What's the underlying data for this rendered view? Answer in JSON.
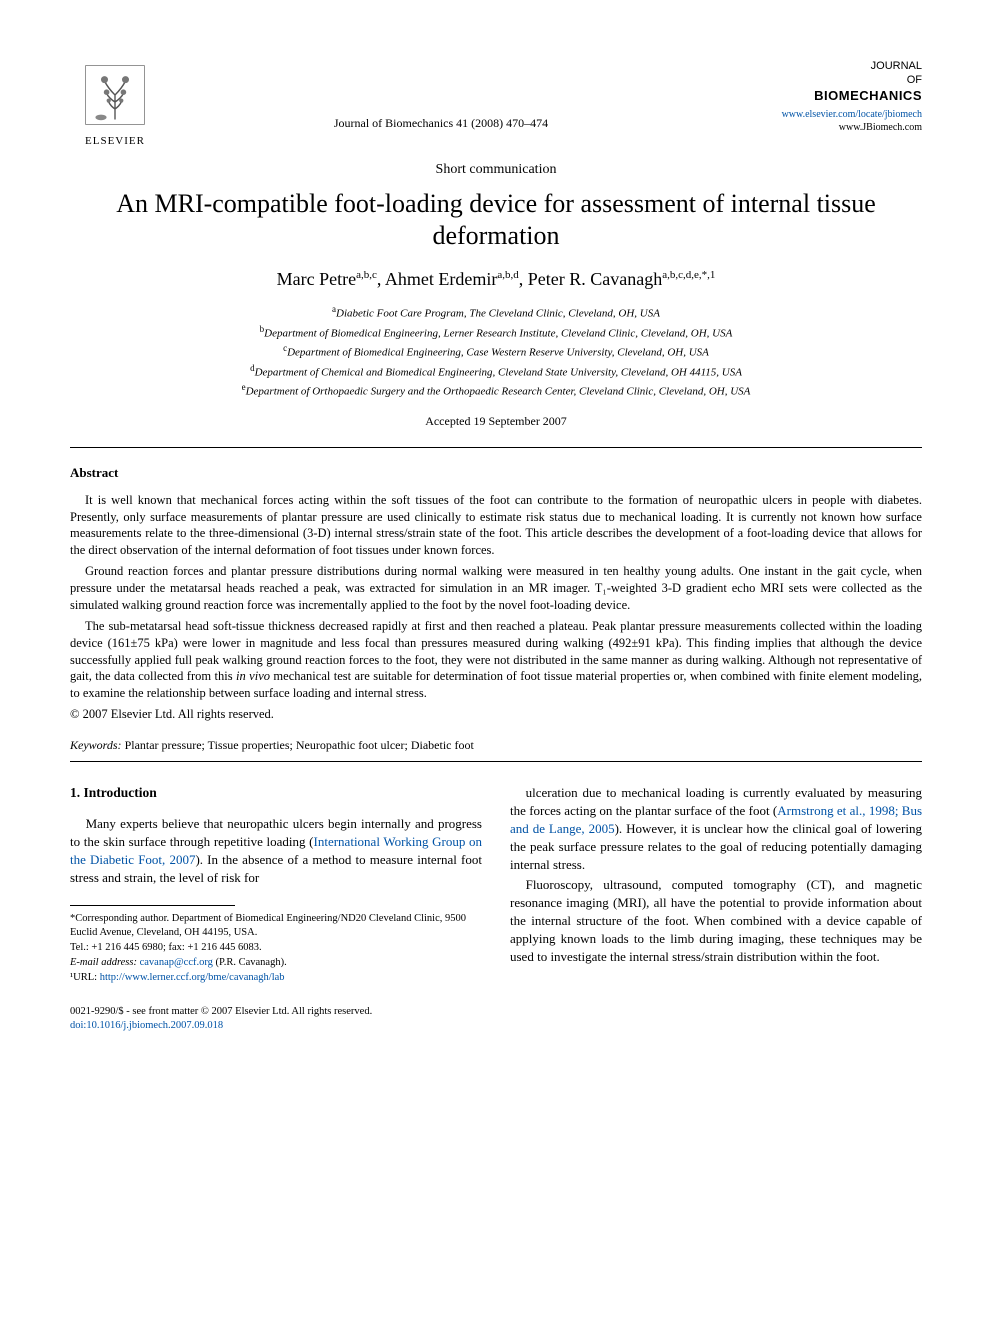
{
  "header": {
    "publisher_logo_label": "ELSEVIER",
    "citation": "Journal of Biomechanics 41 (2008) 470–474",
    "journal_stack": {
      "line1": "JOURNAL",
      "line2": "OF",
      "line3": "BIOMECHANICS"
    },
    "journal_link1": "www.elsevier.com/locate/jbiomech",
    "journal_link2": "www.JBiomech.com"
  },
  "article": {
    "type": "Short communication",
    "title": "An MRI-compatible foot-loading device for assessment of internal tissue deformation",
    "authors_html": "Marc Petre<sup>a,b,c</sup>, Ahmet Erdemir<sup>a,b,d</sup>, Peter R. Cavanagh<sup>a,b,c,d,e,*,1</sup>",
    "affiliations": [
      {
        "sup": "a",
        "text": "Diabetic Foot Care Program, The Cleveland Clinic, Cleveland, OH, USA"
      },
      {
        "sup": "b",
        "text": "Department of Biomedical Engineering, Lerner Research Institute, Cleveland Clinic, Cleveland, OH, USA"
      },
      {
        "sup": "c",
        "text": "Department of Biomedical Engineering, Case Western Reserve University, Cleveland, OH, USA"
      },
      {
        "sup": "d",
        "text": "Department of Chemical and Biomedical Engineering, Cleveland State University, Cleveland, OH 44115, USA"
      },
      {
        "sup": "e",
        "text": "Department of Orthopaedic Surgery and the Orthopaedic Research Center, Cleveland Clinic, Cleveland, OH, USA"
      }
    ],
    "accepted": "Accepted 19 September 2007"
  },
  "abstract": {
    "heading": "Abstract",
    "p1": "It is well known that mechanical forces acting within the soft tissues of the foot can contribute to the formation of neuropathic ulcers in people with diabetes. Presently, only surface measurements of plantar pressure are used clinically to estimate risk status due to mechanical loading. It is currently not known how surface measurements relate to the three-dimensional (3-D) internal stress/strain state of the foot. This article describes the development of a foot-loading device that allows for the direct observation of the internal deformation of foot tissues under known forces.",
    "p2": "Ground reaction forces and plantar pressure distributions during normal walking were measured in ten healthy young adults. One instant in the gait cycle, when pressure under the metatarsal heads reached a peak, was extracted for simulation in an MR imager. T₁-weighted 3-D gradient echo MRI sets were collected as the simulated walking ground reaction force was incrementally applied to the foot by the novel foot-loading device.",
    "p3": "The sub-metatarsal head soft-tissue thickness decreased rapidly at first and then reached a plateau. Peak plantar pressure measurements collected within the loading device (161±75 kPa) were lower in magnitude and less focal than pressures measured during walking (492±91 kPa). This finding implies that although the device successfully applied full peak walking ground reaction forces to the foot, they were not distributed in the same manner as during walking. Although not representative of gait, the data collected from this in vivo mechanical test are suitable for determination of foot tissue material properties or, when combined with finite element modeling, to examine the relationship between surface loading and internal stress.",
    "copyright": "© 2007 Elsevier Ltd. All rights reserved.",
    "keywords_label": "Keywords:",
    "keywords": "Plantar pressure; Tissue properties; Neuropathic foot ulcer; Diabetic foot"
  },
  "body": {
    "section_heading": "1. Introduction",
    "left_p1_a": "Many experts believe that neuropathic ulcers begin internally and progress to the skin surface through repetitive loading (",
    "left_p1_link": "International Working Group on the Diabetic Foot, 2007",
    "left_p1_b": "). In the absence of a method to measure internal foot stress and strain, the level of risk for",
    "right_p1_a": "ulceration due to mechanical loading is currently evaluated by measuring the forces acting on the plantar surface of the foot (",
    "right_p1_link": "Armstrong et al., 1998; Bus and de Lange, 2005",
    "right_p1_b": "). However, it is unclear how the clinical goal of lowering the peak surface pressure relates to the goal of reducing potentially damaging internal stress.",
    "right_p2": "Fluoroscopy, ultrasound, computed tomography (CT), and magnetic resonance imaging (MRI), all have the potential to provide information about the internal structure of the foot. When combined with a device capable of applying known loads to the limb during imaging, these techniques may be used to investigate the internal stress/strain distribution within the foot."
  },
  "footnotes": {
    "corr": "*Corresponding author. Department of Biomedical Engineering/ND20 Cleveland Clinic, 9500 Euclid Avenue, Cleveland, OH 44195, USA.",
    "tel": "Tel.: +1 216 445 6980; fax: +1 216 445 6083.",
    "email_label": "E-mail address:",
    "email": "cavanap@ccf.org",
    "email_after": " (P.R. Cavanagh).",
    "url_label": "¹URL:",
    "url": "http://www.lerner.ccf.org/bme/cavanagh/lab"
  },
  "footer": {
    "left": "0021-9290/$ - see front matter © 2007 Elsevier Ltd. All rights reserved.",
    "doi": "doi:10.1016/j.jbiomech.2007.09.018"
  },
  "colors": {
    "text": "#000000",
    "link": "#0053a6",
    "background": "#ffffff"
  }
}
